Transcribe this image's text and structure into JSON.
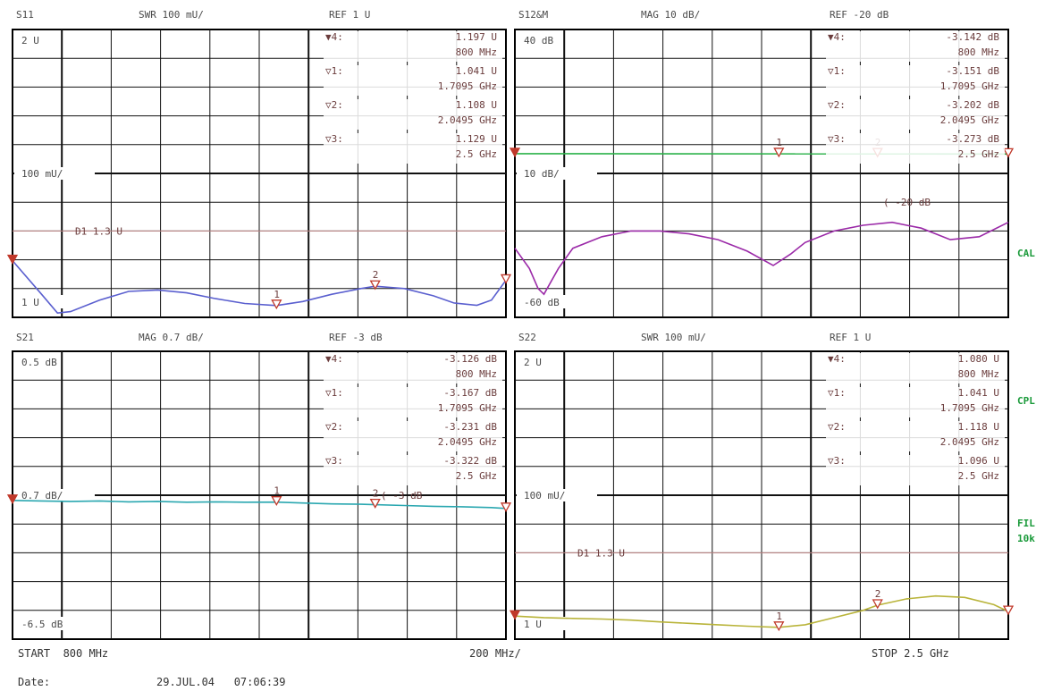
{
  "colors": {
    "grid_major": "#000000",
    "grid_minor": "#111111",
    "ref_line": "#c88c8c",
    "marker": "#c0392b",
    "green_side": "#1a9a3a"
  },
  "side_labels": [
    "CAL",
    "CPL",
    "FIL",
    "10k"
  ],
  "footer": {
    "start": "START  800 MHz",
    "span": "200 MHz/",
    "stop": "STOP 2.5 GHz",
    "date_label": "Date:",
    "date_value": "29.JUL.04   07:06:39"
  },
  "chart_data": [
    {
      "id": "s11",
      "type": "line",
      "header": {
        "param": "S11",
        "scale": "SWR 100 mU/",
        "ref": "REF 1 U"
      },
      "top_label": "2 U",
      "mid_label": "100 mU/",
      "bottom_label": "1 U",
      "ylim": [
        1,
        2
      ],
      "ref_line": {
        "label": "D1 1.3 U",
        "value": 1.3
      },
      "trace_color": "#5a5fcf",
      "markers": [
        {
          "name": "1",
          "x_mhz": 1709.5,
          "y": 1.041
        },
        {
          "name": "2",
          "x_mhz": 2049.5,
          "y": 1.108
        },
        {
          "name": "3",
          "x_mhz": 2500,
          "y": 1.129
        },
        {
          "name": "4",
          "x_mhz": 800,
          "y": 1.197
        }
      ],
      "readout": [
        {
          "sym": "▼4:",
          "val": "1.197  U",
          "freq": "800 MHz"
        },
        {
          "sym": "▽1:",
          "val": "1.041  U",
          "freq": "1.7095 GHz"
        },
        {
          "sym": "▽2:",
          "val": "1.108  U",
          "freq": "2.0495 GHz"
        },
        {
          "sym": "▽3:",
          "val": "1.129  U",
          "freq": "2.5 GHz"
        }
      ],
      "series": [
        {
          "x_mhz": [
            800,
            900,
            955,
            1000,
            1100,
            1200,
            1300,
            1400,
            1500,
            1600,
            1709.5,
            1800,
            1900,
            2000,
            2049.5,
            2150,
            2250,
            2320,
            2400,
            2450,
            2500
          ],
          "y": [
            1.197,
            1.08,
            1.015,
            1.02,
            1.06,
            1.09,
            1.095,
            1.085,
            1.065,
            1.048,
            1.041,
            1.055,
            1.08,
            1.1,
            1.108,
            1.1,
            1.075,
            1.05,
            1.042,
            1.06,
            1.129
          ]
        }
      ]
    },
    {
      "id": "s12",
      "type": "line",
      "header": {
        "param": "S12&M",
        "scale": "MAG 10 dB/",
        "ref": "REF -20 dB"
      },
      "top_label": "40 dB",
      "mid_label": "10 dB/",
      "bottom_label": "-60 dB",
      "ylim": [
        -60,
        40
      ],
      "ref_annotation": "( -20 dB",
      "trace_color": "#9b2aa8",
      "secondary_trace_color": "#2bb24a",
      "markers": [
        {
          "name": "1",
          "x_mhz": 1709.5,
          "y": -3.151
        },
        {
          "name": "2",
          "x_mhz": 2049.5,
          "y": -3.202
        },
        {
          "name": "3",
          "x_mhz": 2500,
          "y": -3.273
        },
        {
          "name": "4",
          "x_mhz": 800,
          "y": -3.142
        }
      ],
      "readout": [
        {
          "sym": "▼4:",
          "val": "-3.142 dB",
          "freq": "800 MHz"
        },
        {
          "sym": "▽1:",
          "val": "-3.151 dB",
          "freq": "1.7095 GHz"
        },
        {
          "sym": "▽2:",
          "val": "-3.202 dB",
          "freq": "2.0495 GHz"
        },
        {
          "sym": "▽3:",
          "val": "-3.273 dB",
          "freq": "2.5 GHz"
        }
      ],
      "series": [
        {
          "name": "S12",
          "x_mhz": [
            800,
            850,
            880,
            900,
            950,
            1000,
            1100,
            1200,
            1300,
            1400,
            1500,
            1600,
            1690,
            1750,
            1800,
            1900,
            2000,
            2100,
            2150,
            2200,
            2300,
            2400,
            2500
          ],
          "y": [
            -36,
            -43,
            -50,
            -52,
            -43,
            -36,
            -32,
            -30,
            -30,
            -31,
            -33,
            -37,
            -42,
            -38,
            -34,
            -30,
            -28,
            -27,
            -28,
            -29,
            -33,
            -32,
            -27
          ]
        },
        {
          "name": "S21",
          "x_mhz": [
            800,
            2500
          ],
          "y": [
            -3.142,
            -3.273
          ]
        }
      ]
    },
    {
      "id": "s21",
      "type": "line",
      "header": {
        "param": "S21",
        "scale": "MAG 0.7 dB/",
        "ref": "REF -3 dB"
      },
      "top_label": "0.5 dB",
      "mid_label": "0.7 dB/",
      "bottom_label": "-6.5 dB",
      "ylim": [
        -6.5,
        0.5
      ],
      "ref_annotation": "( -3 dB",
      "trace_color": "#2aa7b0",
      "markers": [
        {
          "name": "1",
          "x_mhz": 1709.5,
          "y": -3.167
        },
        {
          "name": "2",
          "x_mhz": 2049.5,
          "y": -3.231
        },
        {
          "name": "3",
          "x_mhz": 2500,
          "y": -3.322
        },
        {
          "name": "4",
          "x_mhz": 800,
          "y": -3.126
        }
      ],
      "readout": [
        {
          "sym": "▼4:",
          "val": "-3.126 dB",
          "freq": "800 MHz"
        },
        {
          "sym": "▽1:",
          "val": "-3.167 dB",
          "freq": "1.7095 GHz"
        },
        {
          "sym": "▽2:",
          "val": "-3.231 dB",
          "freq": "2.0495 GHz"
        },
        {
          "sym": "▽3:",
          "val": "-3.322 dB",
          "freq": "2.5 GHz"
        }
      ],
      "series": [
        {
          "x_mhz": [
            800,
            900,
            1000,
            1100,
            1200,
            1300,
            1400,
            1500,
            1600,
            1709.5,
            1800,
            1900,
            2000,
            2049.5,
            2150,
            2250,
            2350,
            2450,
            2500
          ],
          "y": [
            -3.126,
            -3.14,
            -3.15,
            -3.14,
            -3.16,
            -3.15,
            -3.17,
            -3.16,
            -3.17,
            -3.167,
            -3.19,
            -3.21,
            -3.22,
            -3.231,
            -3.25,
            -3.27,
            -3.28,
            -3.3,
            -3.322
          ]
        }
      ]
    },
    {
      "id": "s22",
      "type": "line",
      "header": {
        "param": "S22",
        "scale": "SWR 100 mU/",
        "ref": "REF 1 U"
      },
      "top_label": "2 U",
      "mid_label": "100 mU/",
      "bottom_label": "1 U",
      "ylim": [
        1,
        2
      ],
      "ref_line": {
        "label": "D1 1.3 U",
        "value": 1.3
      },
      "trace_color": "#b9b43a",
      "markers": [
        {
          "name": "1",
          "x_mhz": 1709.5,
          "y": 1.041
        },
        {
          "name": "2",
          "x_mhz": 2049.5,
          "y": 1.118
        },
        {
          "name": "3",
          "x_mhz": 2500,
          "y": 1.096
        },
        {
          "name": "4",
          "x_mhz": 800,
          "y": 1.08
        }
      ],
      "readout": [
        {
          "sym": "▼4:",
          "val": "1.080  U",
          "freq": "800 MHz"
        },
        {
          "sym": "▽1:",
          "val": "1.041  U",
          "freq": "1.7095 GHz"
        },
        {
          "sym": "▽2:",
          "val": "1.118  U",
          "freq": "2.0495 GHz"
        },
        {
          "sym": "▽3:",
          "val": "1.096  U",
          "freq": "2.5 GHz"
        }
      ],
      "series": [
        {
          "x_mhz": [
            800,
            900,
            1000,
            1100,
            1200,
            1300,
            1400,
            1500,
            1600,
            1709.5,
            1800,
            1900,
            2000,
            2049.5,
            2150,
            2250,
            2350,
            2450,
            2500
          ],
          "y": [
            1.08,
            1.075,
            1.072,
            1.07,
            1.066,
            1.06,
            1.055,
            1.05,
            1.045,
            1.041,
            1.05,
            1.075,
            1.1,
            1.118,
            1.14,
            1.15,
            1.145,
            1.12,
            1.096
          ]
        }
      ]
    }
  ]
}
